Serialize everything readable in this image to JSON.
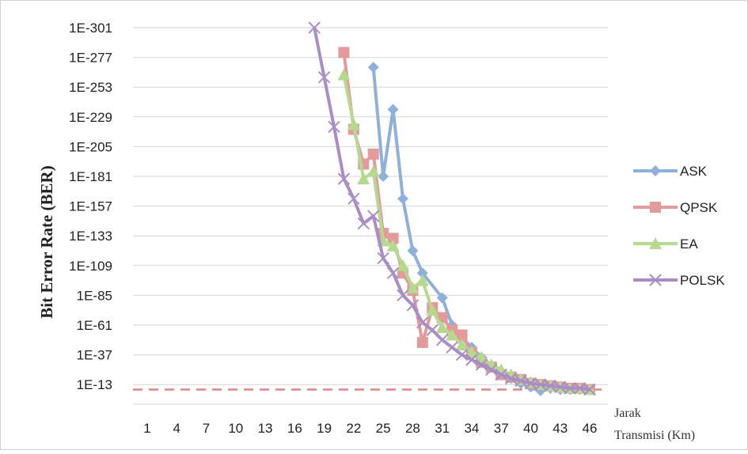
{
  "chart_data": {
    "type": "line",
    "ylabel": "Bit Error Rate (BER)",
    "xlabel_line1": "Jarak",
    "xlabel_line2": "Transmisi (Km)",
    "y_ticks": [
      "1E-301",
      "1E-277",
      "1E-253",
      "1E-229",
      "1E-205",
      "1E-181",
      "1E-157",
      "1E-133",
      "1E-109",
      "1E-85",
      "1E-61",
      "1E-37",
      "1E-13"
    ],
    "y_tick_exponents": [
      -301,
      -277,
      -253,
      -229,
      -205,
      -181,
      -157,
      -133,
      -109,
      -85,
      -61,
      -37,
      -13
    ],
    "x_ticks": [
      "1",
      "4",
      "7",
      "10",
      "13",
      "16",
      "19",
      "22",
      "25",
      "28",
      "31",
      "34",
      "37",
      "40",
      "43",
      "46"
    ],
    "xlim": [
      1,
      46
    ],
    "y_exponent_range": [
      -301,
      -13
    ],
    "grid": "horizontal",
    "legend_position": "right",
    "threshold_exponent": -9,
    "colors": {
      "ASK": "#8fb0d9",
      "QPSK": "#e39a9a",
      "EA": "#b7d98f",
      "POLSK": "#a98ec6",
      "threshold": "#e08585"
    },
    "series": [
      {
        "name": "ASK",
        "marker": "diamond",
        "x": [
          24,
          25,
          26,
          27,
          28,
          29,
          31,
          32,
          33,
          34,
          35,
          36,
          37,
          38,
          39,
          40,
          41,
          42,
          43,
          44,
          45,
          46
        ],
        "y_exponent": [
          -269,
          -181,
          -235,
          -163,
          -121,
          -103,
          -83,
          -61,
          -51,
          -43,
          -35,
          -27,
          -23,
          -18,
          -14,
          -11,
          -8,
          -10,
          -9,
          -9,
          -9,
          -9
        ]
      },
      {
        "name": "QPSK",
        "marker": "square",
        "x": [
          21,
          22,
          23,
          24,
          25,
          26,
          27,
          28,
          29,
          30,
          31,
          32,
          33,
          34,
          35,
          36,
          37,
          38,
          39,
          40,
          41,
          42,
          43,
          44,
          45,
          46
        ],
        "y_exponent": [
          -281,
          -219,
          -191,
          -199,
          -135,
          -131,
          -103,
          -89,
          -47,
          -75,
          -67,
          -57,
          -53,
          -39,
          -31,
          -27,
          -21,
          -19,
          -17,
          -14,
          -13,
          -12,
          -11,
          -10,
          -10,
          -9
        ]
      },
      {
        "name": "EA",
        "marker": "triangle",
        "x": [
          21,
          22,
          23,
          24,
          25,
          26,
          27,
          28,
          29,
          30,
          31,
          32,
          33,
          34,
          35,
          36,
          37,
          38,
          39,
          40,
          41,
          42,
          43,
          44,
          45,
          46
        ],
        "y_exponent": [
          -263,
          -223,
          -179,
          -185,
          -129,
          -125,
          -109,
          -91,
          -97,
          -73,
          -59,
          -53,
          -45,
          -39,
          -35,
          -29,
          -25,
          -21,
          -17,
          -15,
          -13,
          -12,
          -11,
          -10,
          -10,
          -9
        ]
      },
      {
        "name": "POLSK",
        "marker": "x",
        "x": [
          18,
          19,
          20,
          21,
          22,
          23,
          24,
          25,
          26,
          27,
          28,
          29,
          30,
          31,
          32,
          33,
          34,
          35,
          36,
          37,
          38,
          39,
          40,
          41,
          42,
          43,
          44,
          45,
          46
        ],
        "y_exponent": [
          -301,
          -261,
          -221,
          -179,
          -163,
          -143,
          -149,
          -115,
          -103,
          -85,
          -77,
          -63,
          -57,
          -49,
          -43,
          -37,
          -33,
          -29,
          -25,
          -21,
          -18,
          -16,
          -14,
          -13,
          -12,
          -11,
          -10,
          -10,
          -9
        ]
      }
    ]
  }
}
